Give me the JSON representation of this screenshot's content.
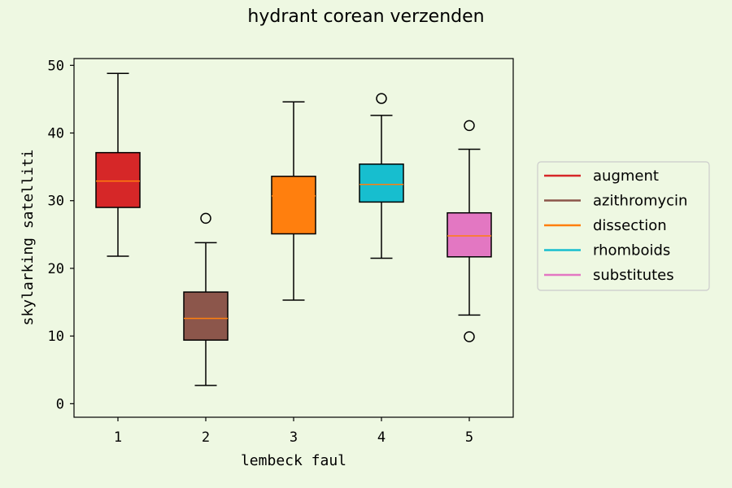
{
  "chart_data": {
    "type": "box",
    "title": "hydrant corean verzenden",
    "xlabel": "lembeck faul",
    "ylabel": "skylarking satelliti",
    "ylim": [
      -2,
      51
    ],
    "yticks": [
      0,
      10,
      20,
      30,
      40,
      50
    ],
    "categories": [
      "1",
      "2",
      "3",
      "4",
      "5"
    ],
    "legend_position": "right-outside",
    "grid": false,
    "boxes": [
      {
        "name": "augment",
        "color": "#d62728",
        "whisker_low": 21.8,
        "q1": 29.0,
        "median": 32.9,
        "q3": 37.1,
        "whisker_high": 48.8,
        "fliers": []
      },
      {
        "name": "azithromycin",
        "color": "#8c564b",
        "whisker_low": 2.7,
        "q1": 9.4,
        "median": 12.6,
        "q3": 16.5,
        "whisker_high": 23.8,
        "fliers": [
          27.4
        ]
      },
      {
        "name": "dissection",
        "color": "#ff7f0e",
        "whisker_low": 15.3,
        "q1": 25.1,
        "median": 30.7,
        "q3": 33.6,
        "whisker_high": 44.6,
        "fliers": []
      },
      {
        "name": "rhomboids",
        "color": "#17becf",
        "whisker_low": 21.5,
        "q1": 29.8,
        "median": 32.4,
        "q3": 35.4,
        "whisker_high": 42.6,
        "fliers": [
          45.1
        ]
      },
      {
        "name": "substitutes",
        "color": "#e377c2",
        "whisker_low": 13.1,
        "q1": 21.7,
        "median": 24.8,
        "q3": 28.2,
        "whisker_high": 37.6,
        "fliers": [
          41.1,
          9.9
        ]
      }
    ],
    "median_color": "#ff7f0e"
  }
}
